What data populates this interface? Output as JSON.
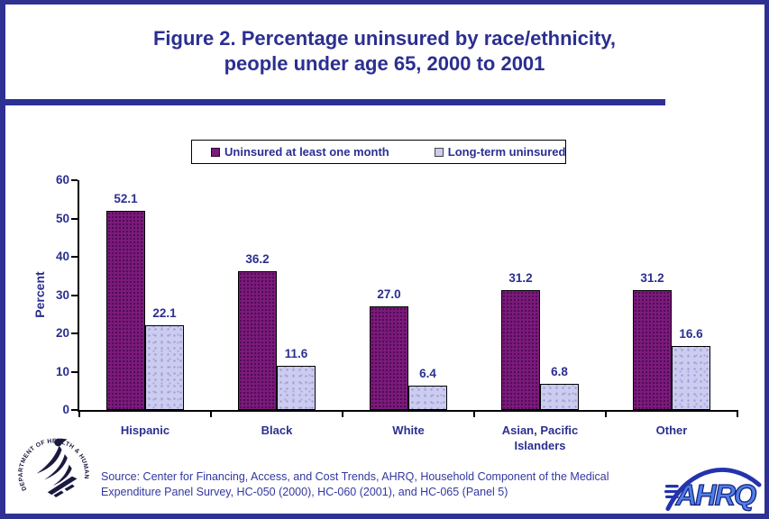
{
  "page": {
    "title_line1": "Figure 2. Percentage uninsured by race/ethnicity,",
    "title_line2": "people under age 65, 2000 to 2001"
  },
  "source": {
    "line1": "Source: Center for Financing, Access, and Cost Trends, AHRQ, Household Component of the Medical",
    "line2": "Expenditure Panel Survey, HC-050 (2000), HC-060 (2001), and HC-065 (Panel 5)"
  },
  "colors": {
    "frame_navy": "#2E3192",
    "text_navy": "#2B2F90",
    "source_blue": "#3338A0",
    "series1_purple": "#7B1A7B",
    "series2_lavender": "#CCCCF0",
    "axis_black": "#000000"
  },
  "logos": {
    "hhs_alt": "Department of Health & Human Services USA eagle seal",
    "hhs_ring_text": "DEPARTMENT OF HEALTH & HUMAN SERVICES · USA",
    "ahrq_text": "AHRQ"
  },
  "chart_data": {
    "type": "bar",
    "title": "",
    "xlabel": "",
    "ylabel": "Percent",
    "ylim": [
      0,
      60
    ],
    "yticks": [
      0,
      10,
      20,
      30,
      40,
      50,
      60
    ],
    "grid": false,
    "legend_position": "top",
    "categories": [
      "Hispanic",
      "Black",
      "White",
      "Asian, Pacific Islanders",
      "Other"
    ],
    "series": [
      {
        "name": "Uninsured at least one month",
        "color": "#7B1A7B",
        "values": [
          52.1,
          36.2,
          27.0,
          31.2,
          31.2
        ],
        "value_labels": [
          "52.1",
          "36.2",
          "27.0",
          "31.2",
          "31.2"
        ]
      },
      {
        "name": "Long-term uninsured",
        "color": "#CCCCF0",
        "values": [
          22.1,
          11.6,
          6.4,
          6.8,
          16.6
        ],
        "value_labels": [
          "22.1",
          "11.6",
          "6.4",
          "6.8",
          "16.6"
        ]
      }
    ]
  }
}
